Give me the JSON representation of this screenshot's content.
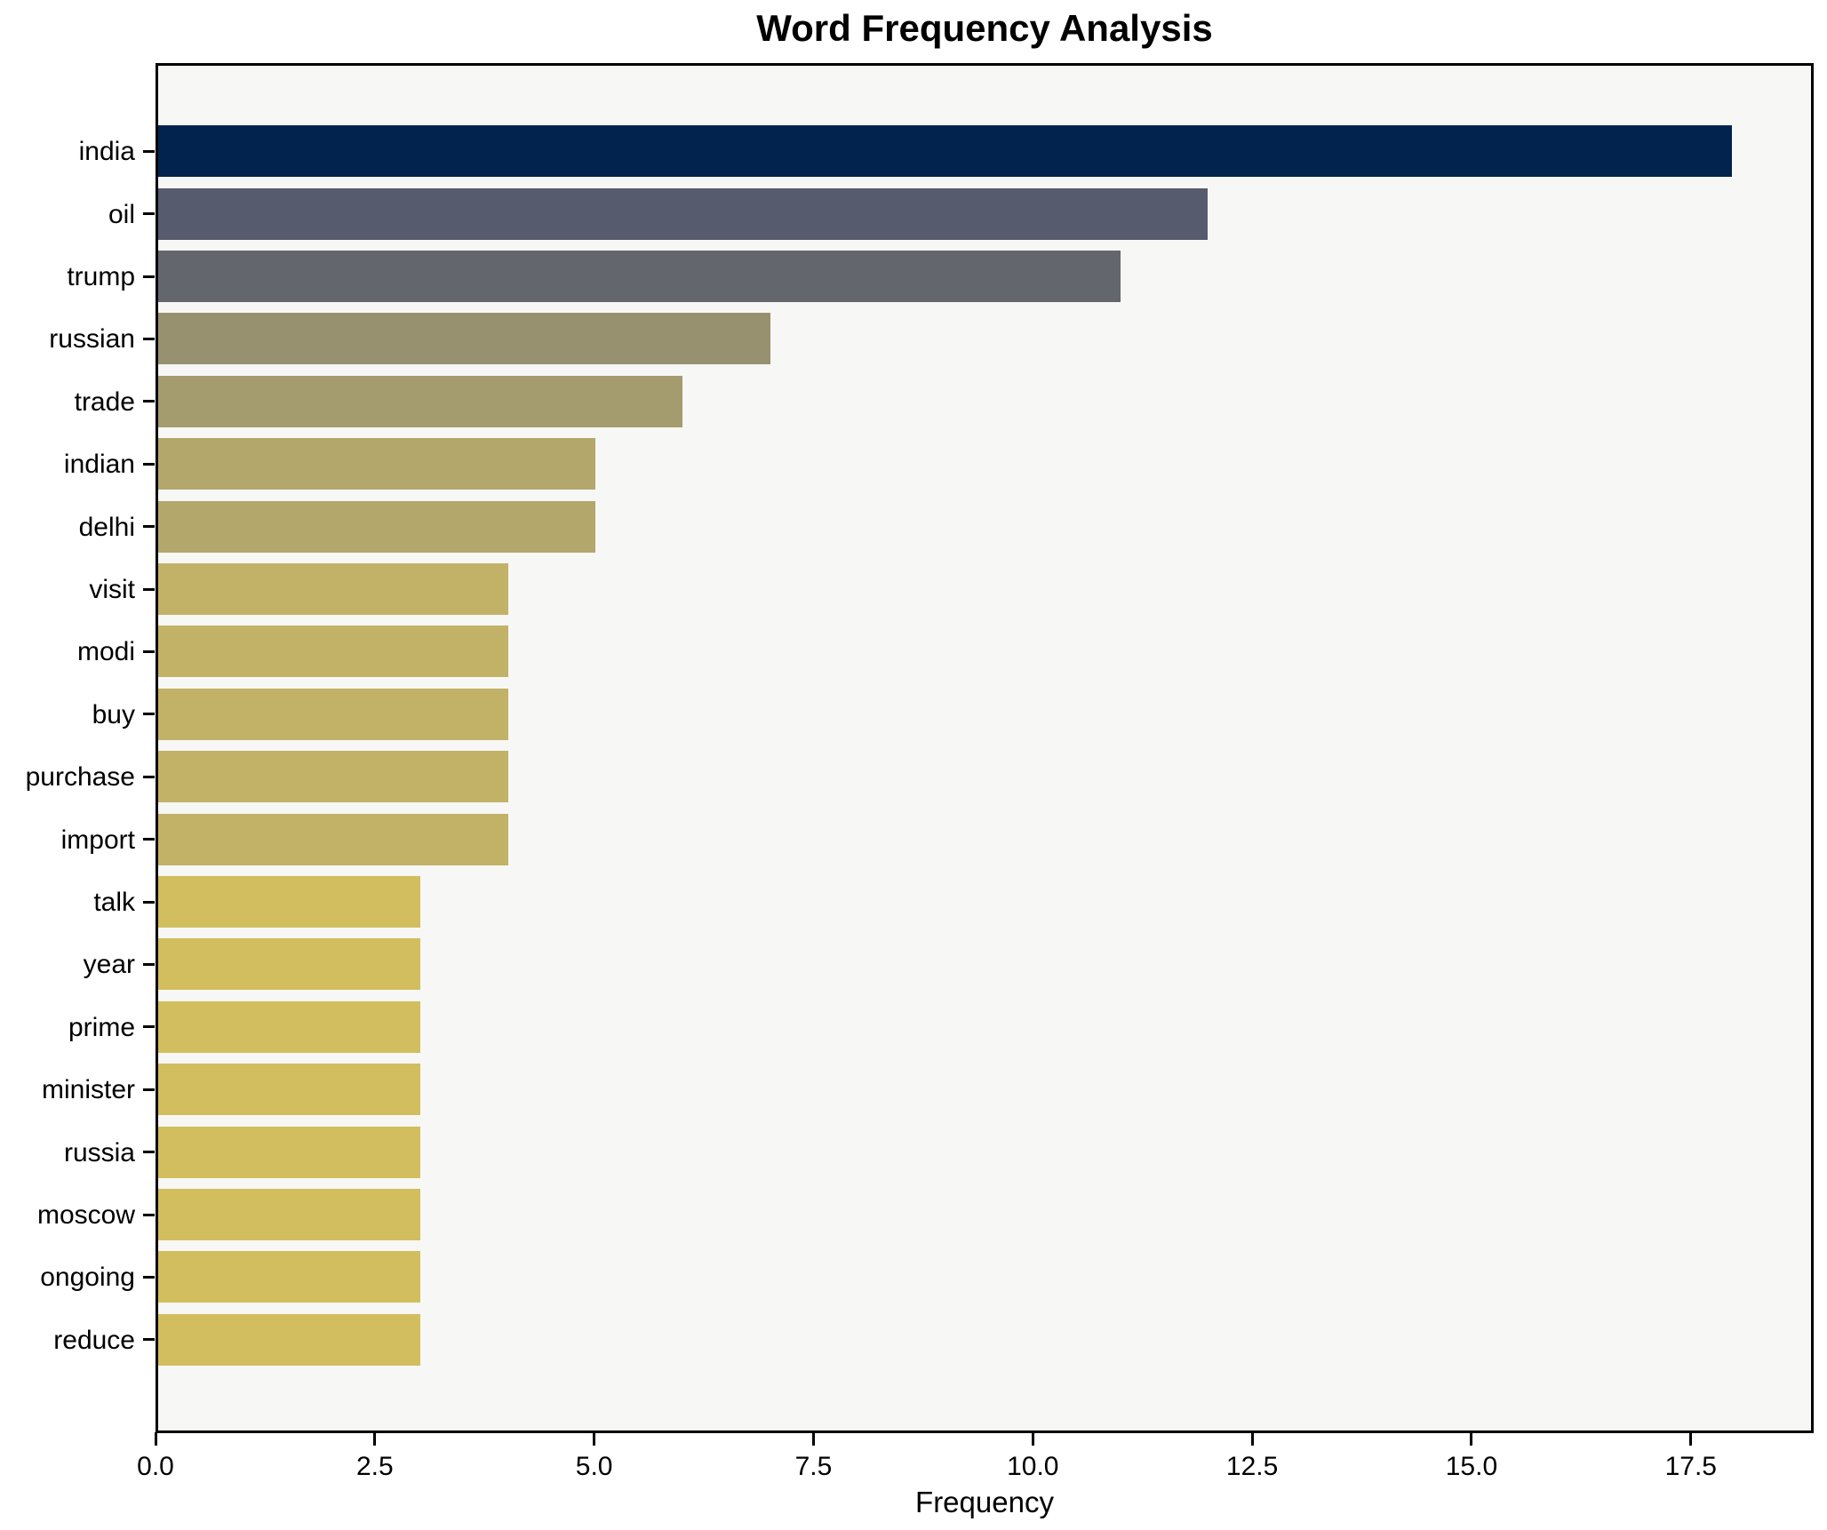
{
  "chart_data": {
    "type": "bar",
    "orientation": "horizontal",
    "title": "Word Frequency Analysis",
    "xlabel": "Frequency",
    "ylabel": "",
    "grid": false,
    "legend": null,
    "xlim": [
      0,
      18.9
    ],
    "xticks": [
      0.0,
      2.5,
      5.0,
      7.5,
      10.0,
      12.5,
      15.0,
      17.5
    ],
    "xtick_labels": [
      "0.0",
      "2.5",
      "5.0",
      "7.5",
      "10.0",
      "12.5",
      "15.0",
      "17.5"
    ],
    "categories": [
      "india",
      "oil",
      "trump",
      "russian",
      "trade",
      "indian",
      "delhi",
      "visit",
      "modi",
      "buy",
      "purchase",
      "import",
      "talk",
      "year",
      "prime",
      "minister",
      "russia",
      "moscow",
      "ongoing",
      "reduce"
    ],
    "values": [
      18,
      12,
      11,
      7,
      6,
      5,
      5,
      4,
      4,
      4,
      4,
      4,
      3,
      3,
      3,
      3,
      3,
      3,
      3,
      3
    ],
    "bar_colors": [
      "#01234e",
      "#565b6d",
      "#64666e",
      "#98916f",
      "#a49b6e",
      "#b3a76c",
      "#b3a76c",
      "#c2b268",
      "#c2b268",
      "#c2b268",
      "#c2b268",
      "#c2b268",
      "#d2be5e",
      "#d2be5e",
      "#d2be5e",
      "#d2be5e",
      "#d2be5e",
      "#d2be5e",
      "#d2be5e",
      "#d2be5e"
    ]
  },
  "colors": {
    "page_background": "#ffffff",
    "plot_background": "#f7f7f5",
    "axis": "#000000",
    "text": "#000000"
  }
}
